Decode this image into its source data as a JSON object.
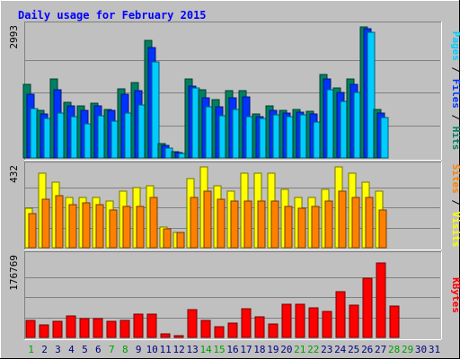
{
  "chart_data": {
    "type": "bar",
    "title": "Daily usage for February 2015",
    "days": [
      "1",
      "2",
      "3",
      "4",
      "5",
      "6",
      "7",
      "8",
      "9",
      "10",
      "11",
      "12",
      "13",
      "14",
      "15",
      "16",
      "17",
      "18",
      "19",
      "20",
      "21",
      "22",
      "23",
      "24",
      "25",
      "26",
      "27",
      "28",
      "29",
      "30",
      "31"
    ],
    "weekend_days": [
      "1",
      "7",
      "8",
      "14",
      "15",
      "21",
      "22",
      "28",
      "29"
    ],
    "panels": [
      {
        "id": "hits-files-pages",
        "ymax_label": "2993",
        "ymax": 2993,
        "right_label": [
          {
            "text": "Pages",
            "color": "#00ccff"
          },
          {
            "text": " / ",
            "color": "#000000"
          },
          {
            "text": "Files",
            "color": "#0033ff"
          },
          {
            "text": " / ",
            "color": "#000000"
          },
          {
            "text": "Hits",
            "color": "#008060"
          }
        ],
        "series": [
          {
            "name": "Hits",
            "color": "#008060",
            "values": [
              1680,
              1080,
              1800,
              1270,
              1180,
              1250,
              1100,
              1580,
              1720,
              2680,
              320,
              150,
              1800,
              1560,
              1340,
              1540,
              1530,
              1000,
              1180,
              1080,
              1100,
              1070,
              1900,
              1600,
              1800,
              2993,
              1110,
              0,
              0,
              0,
              0
            ]
          },
          {
            "name": "Files",
            "color": "#0033ff",
            "values": [
              1450,
              1000,
              1550,
              1180,
              1080,
              1180,
              1080,
              1450,
              1530,
              2520,
              280,
              120,
              1650,
              1380,
              1170,
              1380,
              1390,
              950,
              1080,
              1030,
              1050,
              1000,
              1800,
              1490,
              1690,
              2950,
              1030,
              0,
              0,
              0,
              0
            ]
          },
          {
            "name": "Pages",
            "color": "#00ccff",
            "values": [
              1120,
              900,
              1030,
              940,
              780,
              960,
              850,
              1020,
              1200,
              2200,
              230,
              110,
              1600,
              1170,
              970,
              1100,
              950,
              900,
              980,
              940,
              980,
              830,
              1560,
              1300,
              1490,
              2880,
              930,
              0,
              0,
              0,
              0
            ]
          }
        ]
      },
      {
        "id": "visits-sites",
        "ymax_label": "432",
        "ymax": 432,
        "right_label": [
          {
            "text": "Sites",
            "color": "#ff8000"
          },
          {
            "text": " / ",
            "color": "#000000"
          },
          {
            "text": "Visits",
            "color": "#ffff00"
          }
        ],
        "series": [
          {
            "name": "Visits",
            "color": "#ffff00",
            "values": [
              210,
              400,
              350,
              270,
              270,
              270,
              250,
              300,
              320,
              330,
              110,
              80,
              370,
              432,
              330,
              300,
              400,
              400,
              400,
              310,
              270,
              270,
              310,
              432,
              400,
              350,
              300,
              0,
              0,
              0,
              0
            ]
          },
          {
            "name": "Sites",
            "color": "#ff8000",
            "values": [
              180,
              260,
              280,
              230,
              240,
              230,
              200,
              220,
              220,
              270,
              100,
              80,
              270,
              300,
              260,
              250,
              250,
              250,
              250,
              220,
              210,
              220,
              250,
              300,
              270,
              270,
              200,
              0,
              0,
              0,
              0
            ]
          }
        ]
      },
      {
        "id": "kbytes",
        "ymax_label": "176769",
        "ymax": 176769,
        "right_label": [
          {
            "text": "KBytes",
            "color": "#ff0000"
          }
        ],
        "series": [
          {
            "name": "KBytes",
            "color": "#ff0000",
            "values": [
              37000,
              28000,
              36000,
              48000,
              42000,
              41000,
              35000,
              38000,
              52000,
              52000,
              7000,
              3000,
              60000,
              37000,
              23000,
              31000,
              62000,
              46000,
              30000,
              73000,
              73000,
              65000,
              56000,
              100000,
              71000,
              130000,
              163000,
              69000,
              0,
              0,
              0
            ]
          }
        ]
      }
    ],
    "colors": {
      "background": "#c0c0c0",
      "plot_area": "#c0c0c0",
      "grid": "#808080",
      "title": "#0000ff",
      "weekday_label": "#000080",
      "weekend_label": "#00a000"
    }
  }
}
